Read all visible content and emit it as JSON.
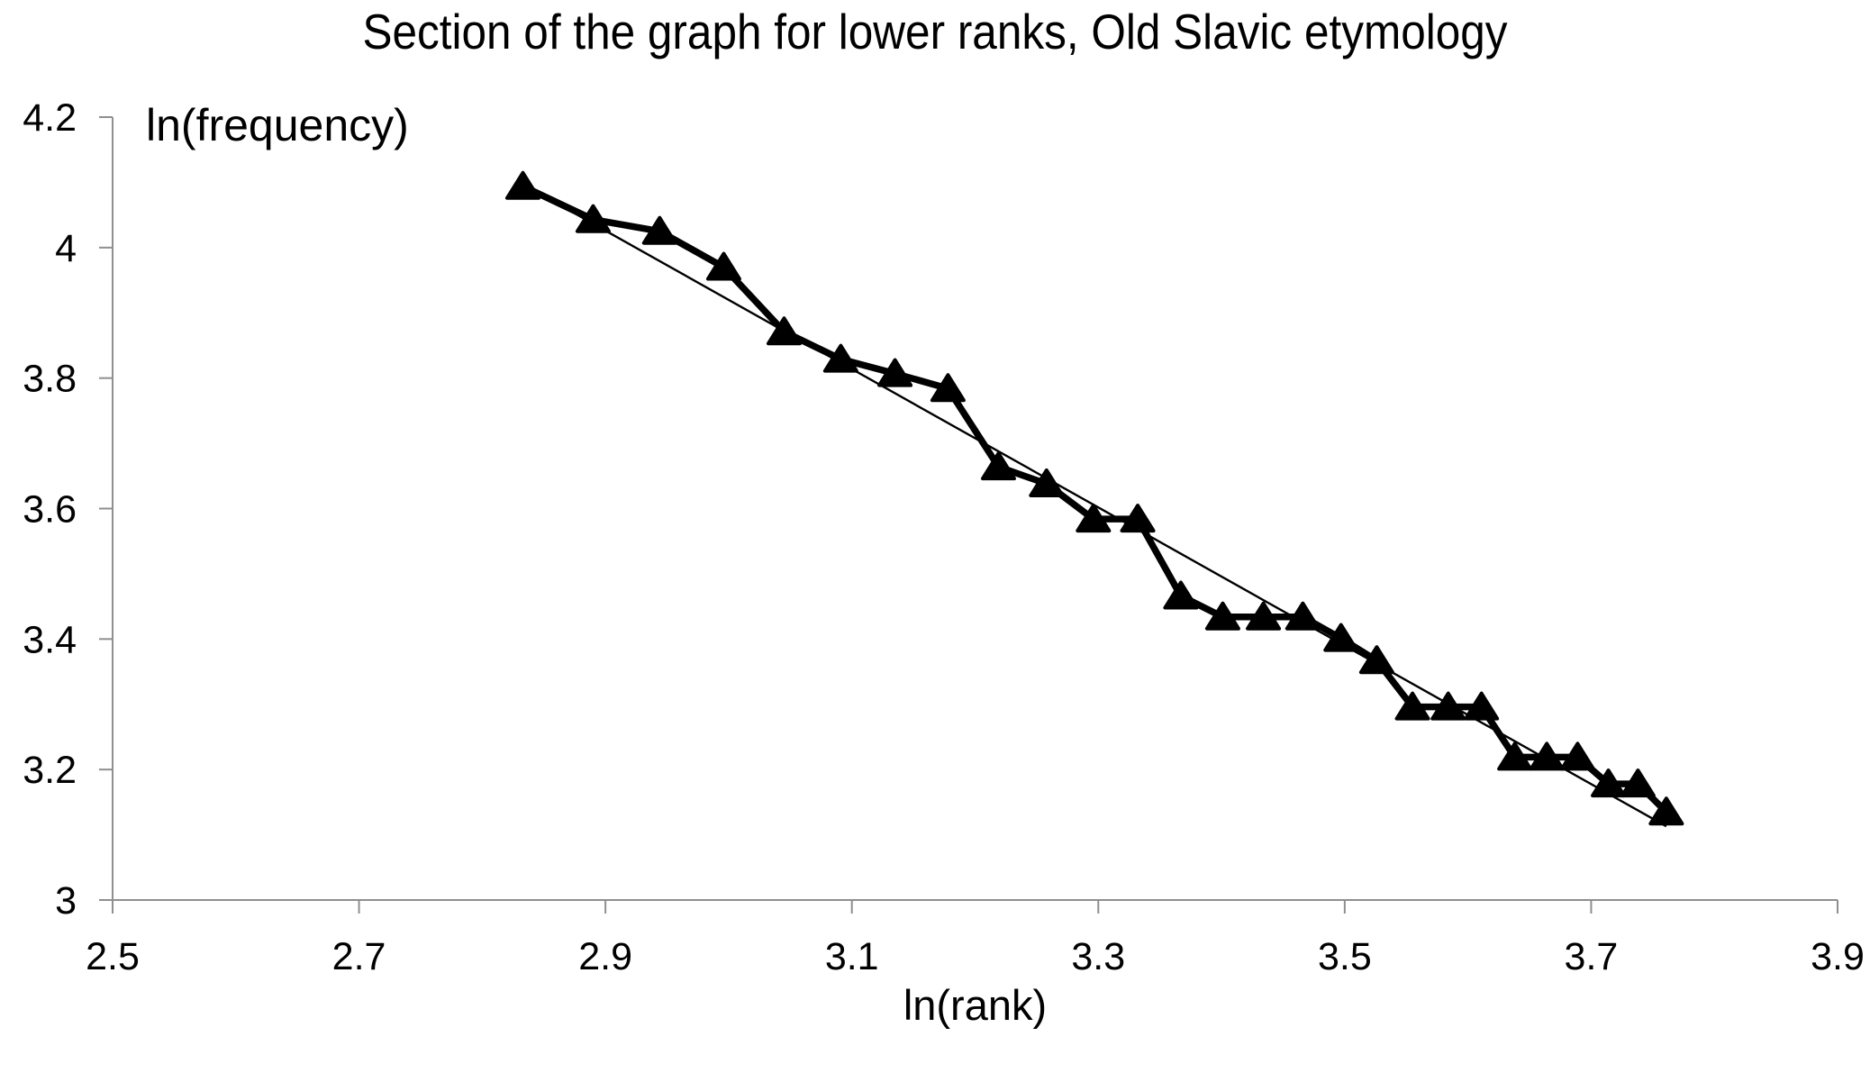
{
  "title": "Section of the graph for lower ranks, Old Slavic etymology",
  "chart_data": {
    "type": "line",
    "title": "Section of the graph for lower ranks, Old Slavic etymology",
    "xlabel": "ln(rank)",
    "ylabel": "ln(frequency)",
    "xlim": [
      2.5,
      3.9
    ],
    "ylim": [
      3.0,
      4.2
    ],
    "x_ticks": [
      "2.5",
      "2.7",
      "2.9",
      "3.1",
      "3.3",
      "3.5",
      "3.7",
      "3.9"
    ],
    "y_ticks": [
      "3",
      "3.2",
      "3.4",
      "3.6",
      "3.8",
      "4",
      "4.2"
    ],
    "grid": false,
    "legend_position": "none",
    "series": [
      {
        "name": "ln(frequency) vs ln(rank)",
        "type": "line-with-markers",
        "marker": "filled-triangle-up",
        "color": "#000000",
        "points": [
          [
            2.833,
            4.094
          ],
          [
            2.89,
            4.043
          ],
          [
            2.944,
            4.025
          ],
          [
            2.996,
            3.97
          ],
          [
            3.045,
            3.871
          ],
          [
            3.091,
            3.829
          ],
          [
            3.135,
            3.807
          ],
          [
            3.178,
            3.784
          ],
          [
            3.219,
            3.664
          ],
          [
            3.258,
            3.638
          ],
          [
            3.296,
            3.584
          ],
          [
            3.332,
            3.584
          ],
          [
            3.367,
            3.466
          ],
          [
            3.401,
            3.434
          ],
          [
            3.434,
            3.434
          ],
          [
            3.466,
            3.434
          ],
          [
            3.497,
            3.401
          ],
          [
            3.526,
            3.367
          ],
          [
            3.555,
            3.296
          ],
          [
            3.584,
            3.296
          ],
          [
            3.611,
            3.296
          ],
          [
            3.638,
            3.219
          ],
          [
            3.664,
            3.219
          ],
          [
            3.689,
            3.219
          ],
          [
            3.714,
            3.178
          ],
          [
            3.738,
            3.178
          ],
          [
            3.761,
            3.135
          ]
        ]
      },
      {
        "name": "linear trend",
        "type": "line",
        "marker": "none",
        "color": "#000000",
        "points": [
          [
            2.833,
            4.097
          ],
          [
            3.761,
            3.113
          ]
        ]
      }
    ]
  },
  "colors": {
    "background": "#ffffff",
    "axis": "#8f8f8f",
    "text": "#000000",
    "series": "#000000"
  }
}
